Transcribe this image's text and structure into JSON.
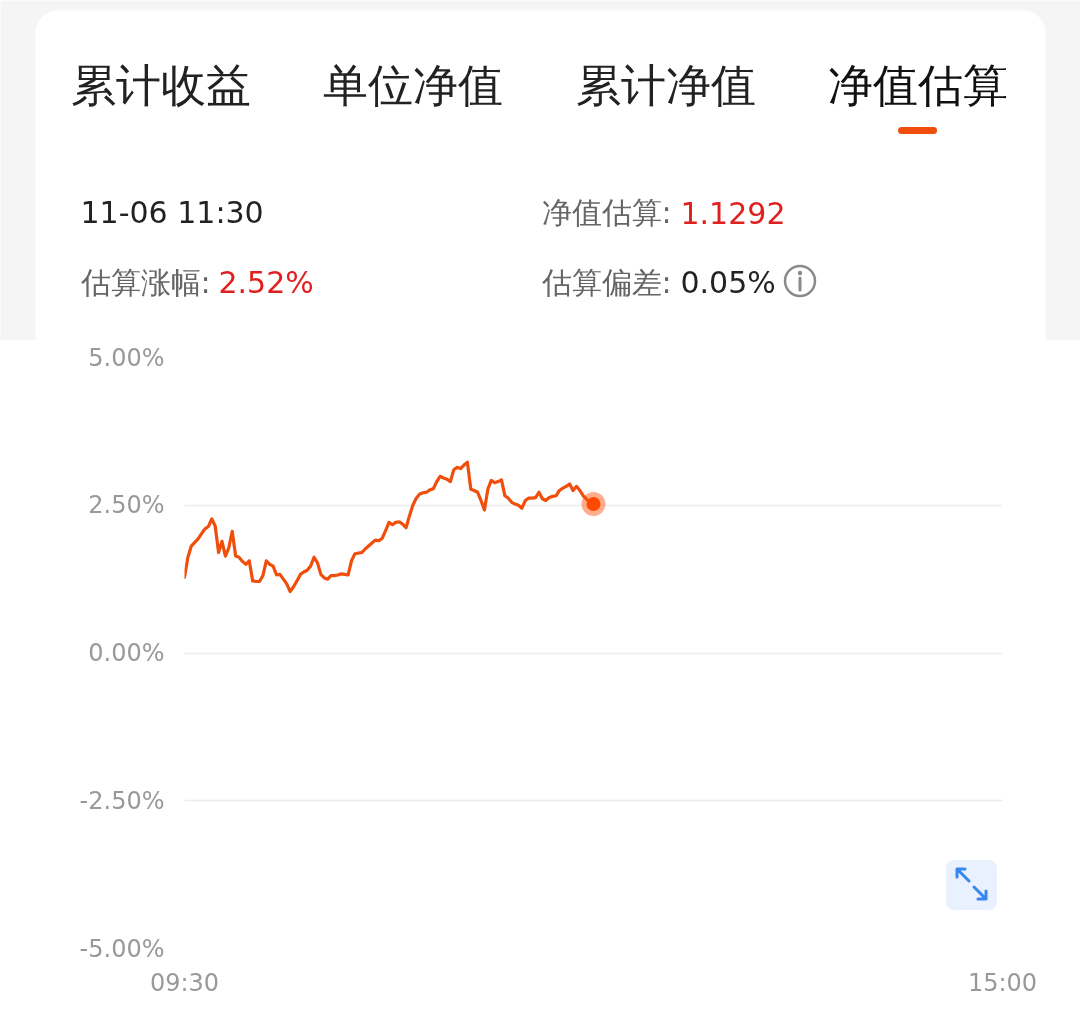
{
  "chart_data": {
    "type": "line",
    "annotations": [
      "累计收益",
      "单位净值",
      "累计净值",
      "净值估算",
      "11-06 11:30",
      "净值估算:",
      "1.1292",
      "估算涨幅:",
      "2.52%",
      "估算偏差:",
      "0.05%"
    ],
    "categories": [
      "09:30",
      null,
      null,
      null,
      null,
      null,
      null,
      null,
      null,
      null,
      null,
      null,
      null,
      null,
      null,
      null,
      null,
      null,
      null,
      null,
      null,
      null,
      null,
      null,
      null,
      null,
      null,
      null,
      null,
      null,
      null,
      null,
      null,
      null,
      null,
      null,
      null,
      null,
      null,
      null,
      null,
      null,
      null,
      null,
      null,
      null,
      null,
      null,
      null,
      null,
      null,
      null,
      null,
      null,
      null,
      null,
      null,
      null,
      null,
      null,
      null,
      null,
      null,
      null,
      null,
      null,
      null,
      null,
      null,
      null,
      null,
      null,
      null,
      null,
      null,
      null,
      null,
      null,
      null,
      null,
      null,
      null,
      null,
      null,
      null,
      null,
      null,
      null,
      null,
      null,
      null,
      null,
      null,
      null,
      null,
      null,
      null,
      null,
      null,
      null,
      null,
      null,
      null,
      null,
      null,
      null,
      null,
      null,
      null,
      null,
      null,
      null,
      null,
      null,
      null,
      null,
      null,
      null,
      null,
      null,
      null,
      null,
      null,
      null,
      null,
      null,
      null,
      null,
      null,
      null,
      null,
      null,
      null,
      null,
      null,
      null,
      null,
      null,
      null,
      null,
      null,
      null,
      null,
      null,
      null,
      null,
      null,
      null,
      null,
      null,
      null,
      null,
      null,
      null,
      null,
      null,
      null,
      null,
      null,
      null,
      null,
      null,
      null,
      null,
      null,
      null,
      null,
      null,
      null,
      null,
      null,
      null,
      null,
      null,
      null,
      null,
      null,
      null,
      null,
      null,
      null,
      null,
      null,
      null,
      null,
      null,
      null,
      null,
      null,
      null,
      null,
      null,
      null,
      null,
      null,
      null,
      null,
      null,
      null,
      null,
      null,
      null,
      null,
      null,
      null,
      null,
      null,
      null,
      null,
      null,
      null,
      null,
      null,
      null,
      null,
      null,
      null,
      null,
      null,
      null,
      null,
      null,
      null,
      null,
      null,
      null,
      null,
      null,
      null,
      null,
      null,
      null,
      null,
      null,
      null,
      null,
      null,
      null,
      null,
      null,
      "15:00"
    ],
    "ylim": [
      -5,
      5
    ],
    "yticks": [
      {
        "value": 5,
        "label": "5.00%"
      },
      {
        "value": 2.5,
        "label": "2.50%"
      },
      {
        "value": 0,
        "label": "0.00%"
      },
      {
        "value": -2.5,
        "label": "-2.50%"
      },
      {
        "value": -5,
        "label": "-5.00%"
      }
    ],
    "grid": "y",
    "series": [
      {
        "color": "#f04e0c",
        "values": [
          1.28,
          1.62,
          1.81,
          1.87,
          1.93,
          2.02,
          2.1,
          2.14,
          2.27,
          2.15,
          1.7,
          1.89,
          1.64,
          1.78,
          2.06,
          1.64,
          1.62,
          1.55,
          1.5,
          1.56,
          1.22,
          1.21,
          1.21,
          1.31,
          1.56,
          1.5,
          1.47,
          1.32,
          1.33,
          1.25,
          1.17,
          1.04,
          1.12,
          1.22,
          1.33,
          1.37,
          1.4,
          1.47,
          1.62,
          1.53,
          1.33,
          1.27,
          1.25,
          1.31,
          1.31,
          1.32,
          1.34,
          1.33,
          1.32,
          1.56,
          1.68,
          1.69,
          1.7,
          1.76,
          1.81,
          1.86,
          1.91,
          1.9,
          1.94,
          2.07,
          2.21,
          2.17,
          2.21,
          2.22,
          2.18,
          2.12,
          2.32,
          2.5,
          2.62,
          2.69,
          2.71,
          2.72,
          2.76,
          2.78,
          2.9,
          2.99,
          2.96,
          2.94,
          2.9,
          3.1,
          3.14,
          3.12,
          3.18,
          3.23,
          2.77,
          2.75,
          2.72,
          2.58,
          2.42,
          2.77,
          2.92,
          2.88,
          2.9,
          2.93,
          2.66,
          2.62,
          2.55,
          2.52,
          2.5,
          2.45,
          2.58,
          2.62,
          2.62,
          2.63,
          2.72,
          2.61,
          2.58,
          2.63,
          2.65,
          2.66,
          2.75,
          2.79,
          2.82,
          2.86,
          2.75,
          2.82,
          2.75,
          2.66,
          2.6,
          2.55,
          2.52,
          null,
          null,
          null,
          null,
          null,
          null,
          null,
          null,
          null,
          null,
          null,
          null,
          null,
          null,
          null,
          null,
          null,
          null,
          null,
          null,
          null,
          null,
          null,
          null,
          null,
          null,
          null,
          null,
          null,
          null,
          null,
          null,
          null,
          null,
          null,
          null,
          null,
          null,
          null,
          null,
          null,
          null,
          null,
          null,
          null,
          null,
          null,
          null,
          null,
          null,
          null,
          null,
          null,
          null,
          null,
          null,
          null,
          null,
          null,
          null,
          null,
          null,
          null,
          null,
          null,
          null,
          null,
          null,
          null,
          null,
          null,
          null,
          null,
          null,
          null,
          null,
          null,
          null,
          null,
          null,
          null,
          null,
          null,
          null,
          null,
          null,
          null,
          null,
          null,
          null,
          null,
          null,
          null,
          null,
          null,
          null,
          null,
          null,
          null,
          null,
          null,
          null,
          null,
          null,
          null,
          null,
          null,
          null,
          null,
          null,
          null,
          null,
          null,
          null,
          null,
          null,
          null,
          null,
          null,
          null
        ]
      },
      {
        "type": "scatter",
        "color": "#ff4a00",
        "values": [
          null,
          null,
          null,
          null,
          null,
          null,
          null,
          null,
          null,
          null,
          null,
          null,
          null,
          null,
          null,
          null,
          null,
          null,
          null,
          null,
          null,
          null,
          null,
          null,
          null,
          null,
          null,
          null,
          null,
          null,
          null,
          null,
          null,
          null,
          null,
          null,
          null,
          null,
          null,
          null,
          null,
          null,
          null,
          null,
          null,
          null,
          null,
          null,
          null,
          null,
          null,
          null,
          null,
          null,
          null,
          null,
          null,
          null,
          null,
          null,
          null,
          null,
          null,
          null,
          null,
          null,
          null,
          null,
          null,
          null,
          null,
          null,
          null,
          null,
          null,
          null,
          null,
          null,
          null,
          null,
          null,
          null,
          null,
          null,
          null,
          null,
          null,
          null,
          null,
          null,
          null,
          null,
          null,
          null,
          null,
          null,
          null,
          null,
          null,
          null,
          null,
          null,
          null,
          null,
          null,
          null,
          null,
          null,
          null,
          null,
          null,
          null,
          null,
          null,
          null,
          null,
          null,
          null,
          null,
          null,
          2.52,
          null,
          null,
          null,
          null,
          null,
          null,
          null,
          null,
          null,
          null,
          null,
          null,
          null,
          null,
          null,
          null,
          null,
          null,
          null,
          null,
          null,
          null,
          null,
          null,
          null,
          null,
          null,
          null,
          null,
          null,
          null,
          null,
          null,
          null,
          null,
          null,
          null,
          null,
          null,
          null,
          null,
          null,
          null,
          null,
          null,
          null,
          null,
          null,
          null,
          null,
          null,
          null,
          null,
          null,
          null,
          null,
          null,
          null,
          null,
          null,
          null,
          null,
          null,
          null,
          null,
          null,
          null,
          null,
          null,
          null,
          null,
          null,
          null,
          null,
          null,
          null,
          null,
          null,
          null,
          null,
          null,
          null,
          null,
          null,
          null,
          null,
          null,
          null,
          null,
          null,
          null,
          null,
          null,
          null,
          null,
          null,
          null,
          null,
          null,
          null,
          null,
          null,
          null,
          null,
          null,
          null,
          null,
          null,
          null,
          null,
          null,
          null,
          null,
          null,
          null,
          null,
          null,
          null,
          null,
          null
        ]
      }
    ]
  }
}
